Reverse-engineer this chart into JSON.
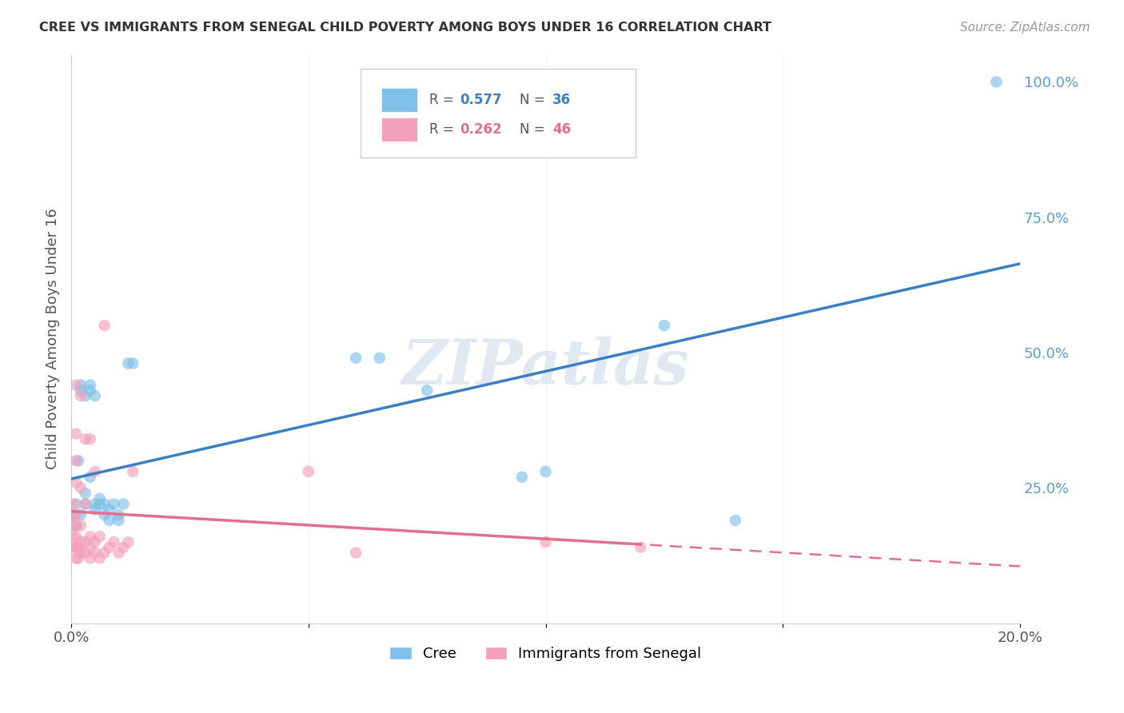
{
  "title": "CREE VS IMMIGRANTS FROM SENEGAL CHILD POVERTY AMONG BOYS UNDER 16 CORRELATION CHART",
  "source": "Source: ZipAtlas.com",
  "ylabel": "Child Poverty Among Boys Under 16",
  "xlim": [
    0.0,
    0.2
  ],
  "ylim": [
    0.0,
    1.05
  ],
  "cree_color": "#7fbfe8",
  "senegal_color": "#f4a0bb",
  "cree_line_color": "#3a7fc1",
  "senegal_line_color": "#e07090",
  "legend_R_cree": "0.577",
  "legend_N_cree": "36",
  "legend_R_senegal": "0.262",
  "legend_N_senegal": "46",
  "watermark": "ZIPatlas",
  "cree_points": [
    [
      0.0005,
      0.2
    ],
    [
      0.001,
      0.22
    ],
    [
      0.001,
      0.18
    ],
    [
      0.0015,
      0.3
    ],
    [
      0.002,
      0.43
    ],
    [
      0.002,
      0.44
    ],
    [
      0.002,
      0.2
    ],
    [
      0.003,
      0.42
    ],
    [
      0.003,
      0.22
    ],
    [
      0.003,
      0.24
    ],
    [
      0.004,
      0.27
    ],
    [
      0.004,
      0.43
    ],
    [
      0.004,
      0.44
    ],
    [
      0.005,
      0.42
    ],
    [
      0.005,
      0.22
    ],
    [
      0.005,
      0.21
    ],
    [
      0.006,
      0.23
    ],
    [
      0.006,
      0.22
    ],
    [
      0.007,
      0.22
    ],
    [
      0.007,
      0.2
    ],
    [
      0.008,
      0.21
    ],
    [
      0.008,
      0.19
    ],
    [
      0.009,
      0.22
    ],
    [
      0.01,
      0.2
    ],
    [
      0.01,
      0.19
    ],
    [
      0.011,
      0.22
    ],
    [
      0.012,
      0.48
    ],
    [
      0.013,
      0.48
    ],
    [
      0.06,
      0.49
    ],
    [
      0.065,
      0.49
    ],
    [
      0.075,
      0.43
    ],
    [
      0.095,
      0.27
    ],
    [
      0.1,
      0.28
    ],
    [
      0.125,
      0.55
    ],
    [
      0.14,
      0.19
    ],
    [
      0.195,
      1.0
    ]
  ],
  "senegal_points": [
    [
      0.0002,
      0.14
    ],
    [
      0.0003,
      0.16
    ],
    [
      0.0004,
      0.18
    ],
    [
      0.0005,
      0.2
    ],
    [
      0.0005,
      0.22
    ],
    [
      0.001,
      0.12
    ],
    [
      0.001,
      0.14
    ],
    [
      0.001,
      0.16
    ],
    [
      0.001,
      0.18
    ],
    [
      0.001,
      0.2
    ],
    [
      0.001,
      0.26
    ],
    [
      0.001,
      0.3
    ],
    [
      0.001,
      0.35
    ],
    [
      0.001,
      0.44
    ],
    [
      0.0015,
      0.12
    ],
    [
      0.0015,
      0.14
    ],
    [
      0.002,
      0.13
    ],
    [
      0.002,
      0.15
    ],
    [
      0.002,
      0.18
    ],
    [
      0.002,
      0.25
    ],
    [
      0.002,
      0.42
    ],
    [
      0.003,
      0.13
    ],
    [
      0.003,
      0.15
    ],
    [
      0.003,
      0.22
    ],
    [
      0.003,
      0.34
    ],
    [
      0.004,
      0.12
    ],
    [
      0.004,
      0.14
    ],
    [
      0.004,
      0.16
    ],
    [
      0.004,
      0.34
    ],
    [
      0.005,
      0.13
    ],
    [
      0.005,
      0.15
    ],
    [
      0.005,
      0.28
    ],
    [
      0.006,
      0.12
    ],
    [
      0.006,
      0.16
    ],
    [
      0.007,
      0.13
    ],
    [
      0.007,
      0.55
    ],
    [
      0.008,
      0.14
    ],
    [
      0.009,
      0.15
    ],
    [
      0.01,
      0.13
    ],
    [
      0.011,
      0.14
    ],
    [
      0.012,
      0.15
    ],
    [
      0.013,
      0.28
    ],
    [
      0.05,
      0.28
    ],
    [
      0.06,
      0.13
    ],
    [
      0.1,
      0.15
    ],
    [
      0.12,
      0.14
    ]
  ]
}
